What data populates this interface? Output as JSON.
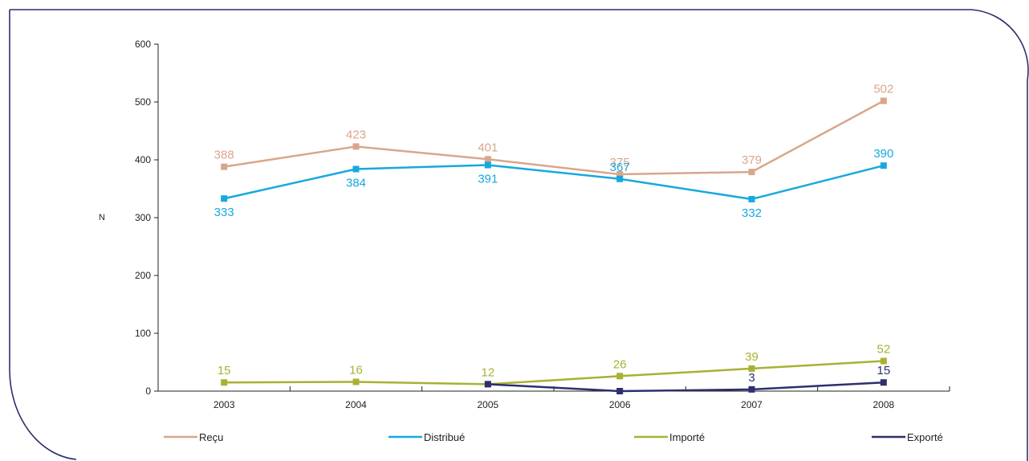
{
  "chart_data": {
    "type": "line",
    "xlabel": "",
    "ylabel": "N",
    "ylim": [
      0,
      600
    ],
    "yticks": [
      "0",
      "100",
      "200",
      "300",
      "400",
      "500",
      "600"
    ],
    "categories": [
      "2003",
      "2004",
      "2005",
      "2006",
      "2007",
      "2008"
    ],
    "legend_position": "bottom",
    "series": [
      {
        "name": "Reçu",
        "color": "#D9A68A",
        "values": [
          388,
          423,
          401,
          375,
          379,
          502
        ],
        "labels": [
          "388",
          "423",
          "401",
          "375",
          "379",
          "502"
        ]
      },
      {
        "name": "Distribué",
        "color": "#18A8DE",
        "values": [
          333,
          384,
          391,
          367,
          332,
          390
        ],
        "labels": [
          "333",
          "384",
          "391",
          "367",
          "332",
          "390"
        ]
      },
      {
        "name": "Importé",
        "color": "#A8B232",
        "values": [
          15,
          16,
          12,
          26,
          39,
          52
        ],
        "labels": [
          "15",
          "16",
          "12",
          "26",
          "39",
          "52"
        ]
      },
      {
        "name": "Exporté",
        "color": "#2E2F6E",
        "values": [
          null,
          null,
          12,
          0,
          3,
          15
        ],
        "labels": [
          null,
          null,
          null,
          null,
          "3",
          "15"
        ]
      }
    ]
  }
}
